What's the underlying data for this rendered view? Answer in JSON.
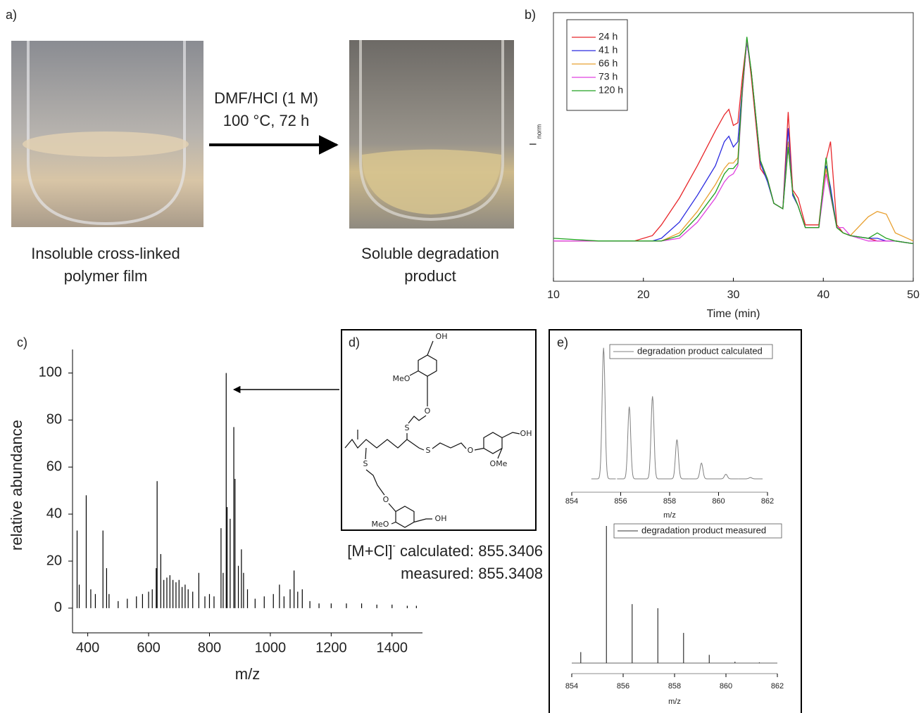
{
  "panel_labels": [
    "a)",
    "b)",
    "c)",
    "d)",
    "e)"
  ],
  "scheme": {
    "reagents": "DMF/HCl (1 M)",
    "conditions": "100 °C, 72 h",
    "before": [
      "Insoluble cross-linked",
      "polymer film"
    ],
    "after": [
      "Soluble degradation",
      "product"
    ]
  },
  "structure": {
    "labels": [
      "OH",
      "MeO",
      "O",
      "S",
      "OH",
      "O",
      "OMe",
      "S",
      "S",
      "O",
      "MeO",
      "OH"
    ]
  },
  "mass": {
    "ion": "[M+Cl]",
    "charge": "-",
    "calculated": " calculated: 855.3406",
    "measured": "measured: 855.3408"
  },
  "chart_data": [
    {
      "type": "line",
      "xlabel": "Time (min)",
      "ylabel": "I",
      "ylabel_subscript": "norm",
      "xlim": [
        10,
        50
      ],
      "xticks": [
        10,
        20,
        30,
        40,
        50
      ],
      "ylim": [
        0,
        1
      ],
      "legend": "upper left",
      "x": [
        10,
        15,
        19,
        21,
        22,
        24,
        26,
        28,
        29,
        29.5,
        30,
        30.5,
        31,
        31.5,
        32,
        33,
        33.8,
        34.5,
        35.5,
        36.1,
        36.6,
        37.2,
        38,
        39.5,
        40.3,
        40.8,
        41.5,
        42.2,
        43,
        45,
        46,
        47,
        48,
        50
      ],
      "series": [
        {
          "name": "24 h",
          "color": "#e8262a",
          "values": [
            0.15,
            0.15,
            0.15,
            0.17,
            0.21,
            0.31,
            0.43,
            0.56,
            0.62,
            0.64,
            0.58,
            0.59,
            0.76,
            0.9,
            0.76,
            0.42,
            0.38,
            0.29,
            0.27,
            0.63,
            0.34,
            0.31,
            0.21,
            0.21,
            0.45,
            0.52,
            0.21,
            0.18,
            0.17,
            0.16,
            0.15,
            0.15,
            0.15,
            0.14
          ]
        },
        {
          "name": "41 h",
          "color": "#2a2ae0",
          "values": [
            0.15,
            0.15,
            0.15,
            0.15,
            0.16,
            0.22,
            0.32,
            0.43,
            0.52,
            0.54,
            0.5,
            0.52,
            0.72,
            0.89,
            0.78,
            0.44,
            0.37,
            0.29,
            0.27,
            0.57,
            0.32,
            0.28,
            0.2,
            0.2,
            0.43,
            0.35,
            0.2,
            0.18,
            0.17,
            0.16,
            0.16,
            0.15,
            0.15,
            0.14
          ]
        },
        {
          "name": "66 h",
          "color": "#e8a030",
          "values": [
            0.15,
            0.15,
            0.15,
            0.15,
            0.15,
            0.18,
            0.26,
            0.36,
            0.42,
            0.44,
            0.44,
            0.46,
            0.7,
            0.9,
            0.78,
            0.45,
            0.38,
            0.29,
            0.27,
            0.52,
            0.33,
            0.28,
            0.2,
            0.2,
            0.42,
            0.32,
            0.2,
            0.18,
            0.17,
            0.24,
            0.26,
            0.25,
            0.18,
            0.15
          ]
        },
        {
          "name": "73 h",
          "color": "#e040e0",
          "values": [
            0.15,
            0.15,
            0.15,
            0.15,
            0.15,
            0.16,
            0.22,
            0.31,
            0.37,
            0.39,
            0.4,
            0.43,
            0.7,
            0.9,
            0.78,
            0.45,
            0.38,
            0.29,
            0.27,
            0.5,
            0.33,
            0.28,
            0.2,
            0.2,
            0.4,
            0.32,
            0.2,
            0.2,
            0.17,
            0.15,
            0.15,
            0.15,
            0.15,
            0.14
          ]
        },
        {
          "name": "120 h",
          "color": "#20a020",
          "values": [
            0.16,
            0.15,
            0.15,
            0.15,
            0.15,
            0.17,
            0.24,
            0.33,
            0.4,
            0.42,
            0.42,
            0.44,
            0.72,
            0.91,
            0.78,
            0.45,
            0.38,
            0.29,
            0.27,
            0.5,
            0.33,
            0.28,
            0.2,
            0.2,
            0.46,
            0.33,
            0.2,
            0.18,
            0.17,
            0.16,
            0.18,
            0.16,
            0.15,
            0.14
          ]
        }
      ]
    },
    {
      "type": "stem",
      "xlabel": "m/z",
      "ylabel": "relative abundance",
      "color": "#000000",
      "xlim": [
        350,
        1500
      ],
      "xticks": [
        400,
        600,
        800,
        1000,
        1200,
        1400
      ],
      "ylim": [
        -10.5,
        110
      ],
      "yticks": [
        0,
        20,
        40,
        60,
        80,
        100
      ],
      "x": [
        365,
        372,
        395,
        410,
        425,
        450,
        462,
        470,
        500,
        530,
        560,
        580,
        600,
        612,
        625,
        628,
        640,
        650,
        660,
        670,
        680,
        690,
        700,
        710,
        720,
        730,
        745,
        765,
        785,
        800,
        815,
        838,
        845,
        855,
        858,
        868,
        880,
        884,
        895,
        905,
        912,
        925,
        950,
        980,
        1010,
        1030,
        1045,
        1065,
        1078,
        1090,
        1105,
        1130,
        1160,
        1200,
        1250,
        1300,
        1350,
        1400,
        1450,
        1480
      ],
      "values": [
        33,
        10,
        48,
        8,
        6,
        33,
        17,
        6,
        3,
        4,
        5,
        6,
        7,
        8,
        17,
        54,
        23,
        12,
        13,
        14,
        12,
        11,
        12,
        9,
        10,
        8,
        7,
        15,
        5,
        6,
        5,
        34,
        15,
        100,
        43,
        38,
        77,
        55,
        18,
        25,
        15,
        8,
        4,
        5,
        6,
        10,
        5,
        8,
        16,
        7,
        8,
        3,
        2,
        2,
        2,
        2,
        1.5,
        1.5,
        1,
        1
      ]
    },
    {
      "type": "peaks",
      "xlabel": "m/z",
      "xlim": [
        854,
        862
      ],
      "xticks": [
        854,
        856,
        858,
        860,
        862
      ],
      "ylim": [
        0,
        1.1
      ],
      "series": [
        {
          "name": "degradation product calculated",
          "color": "#808080",
          "x": [
            855.3,
            856.35,
            857.3,
            858.3,
            859.3,
            860.3,
            861.3
          ],
          "values": [
            1,
            0.55,
            0.63,
            0.3,
            0.12,
            0.035,
            0.01
          ]
        }
      ]
    },
    {
      "type": "stem",
      "xlabel": "m/z",
      "xlim": [
        854,
        862
      ],
      "xticks": [
        854,
        856,
        858,
        860,
        862
      ],
      "ylim": [
        0,
        1.1
      ],
      "series": [
        {
          "name": "degradation product measured",
          "color": "#333333",
          "x": [
            854.35,
            855.35,
            856.35,
            857.35,
            858.35,
            859.35,
            860.35,
            861.3
          ],
          "values": [
            0.08,
            1,
            0.43,
            0.4,
            0.22,
            0.06,
            0.01,
            0.005
          ]
        }
      ]
    }
  ]
}
